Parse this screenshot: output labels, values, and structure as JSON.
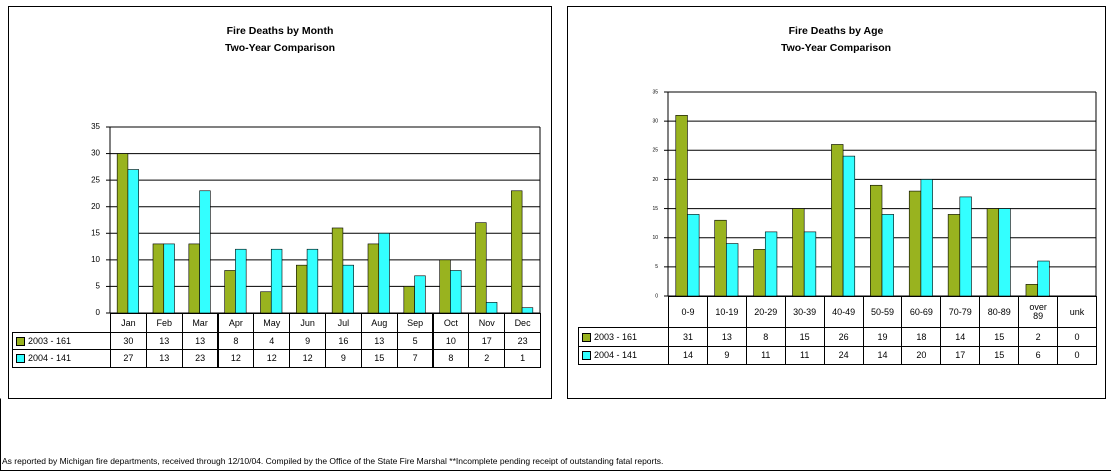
{
  "chart_data": [
    {
      "type": "bar",
      "title": "Fire Deaths by Month",
      "subtitle": "Two-Year Comparison",
      "categories": [
        "Jan",
        "Feb",
        "Mar",
        "Apr",
        "May",
        "Jun",
        "Jul",
        "Aug",
        "Sep",
        "Oct",
        "Nov",
        "Dec"
      ],
      "series": [
        {
          "name": "2003 - 161",
          "color": "#99b31f",
          "values": [
            30,
            13,
            13,
            8,
            4,
            9,
            16,
            13,
            5,
            10,
            17,
            23
          ]
        },
        {
          "name": "2004 - 141",
          "color": "#33ffff",
          "values": [
            27,
            13,
            23,
            12,
            12,
            12,
            9,
            15,
            7,
            8,
            2,
            1
          ]
        }
      ],
      "ylim": [
        0,
        35
      ],
      "yticks": [
        0,
        5,
        10,
        15,
        20,
        25,
        30,
        35
      ],
      "grid": true
    },
    {
      "type": "bar",
      "title": "Fire Deaths by Age",
      "subtitle": "Two-Year Comparison",
      "categories": [
        "0-9",
        "10-19",
        "20-29",
        "30-39",
        "40-49",
        "50-59",
        "60-69",
        "70-79",
        "80-89",
        "over 89",
        "unk"
      ],
      "series": [
        {
          "name": "2003 - 161",
          "color": "#99b31f",
          "values": [
            31,
            13,
            8,
            15,
            26,
            19,
            18,
            14,
            15,
            2,
            0
          ]
        },
        {
          "name": "2004 - 141",
          "color": "#33ffff",
          "values": [
            14,
            9,
            11,
            11,
            24,
            14,
            20,
            17,
            15,
            6,
            0
          ]
        }
      ],
      "ylim": [
        0,
        35
      ],
      "yticks": [
        0,
        5,
        10,
        15,
        20,
        25,
        30,
        35
      ],
      "grid": true
    }
  ],
  "footer": "As reported by Michigan fire departments, received through 12/10/04. Compiled by the Office of the State Fire Marshal  **Incomplete pending receipt of outstanding fatal reports."
}
